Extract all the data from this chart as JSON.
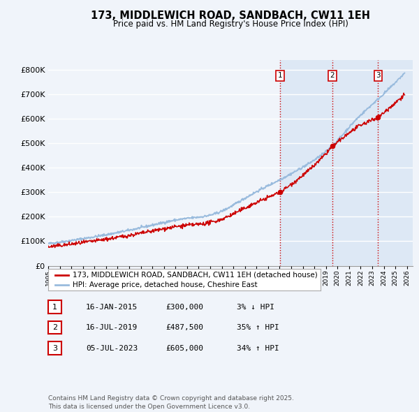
{
  "title": "173, MIDDLEWICH ROAD, SANDBACH, CW11 1EH",
  "subtitle": "Price paid vs. HM Land Registry's House Price Index (HPI)",
  "background_color": "#f0f4fa",
  "grid_color": "#ffffff",
  "ylim": [
    0,
    840000
  ],
  "yticks": [
    0,
    100000,
    200000,
    300000,
    400000,
    500000,
    600000,
    700000,
    800000
  ],
  "ytick_labels": [
    "£0",
    "£100K",
    "£200K",
    "£300K",
    "£400K",
    "£500K",
    "£600K",
    "£700K",
    "£800K"
  ],
  "xlim_start": 1995.0,
  "xlim_end": 2026.5,
  "sale_dates": [
    2015.04,
    2019.54,
    2023.51
  ],
  "sale_prices": [
    300000,
    487500,
    605000
  ],
  "sale_labels": [
    "1",
    "2",
    "3"
  ],
  "vline_color": "#cc0000",
  "sale_marker_color": "#cc0000",
  "hpi_line_color": "#99bbdd",
  "property_line_color": "#cc0000",
  "shade_color": "#dde8f5",
  "legend_items": [
    "173, MIDDLEWICH ROAD, SANDBACH, CW11 1EH (detached house)",
    "HPI: Average price, detached house, Cheshire East"
  ],
  "table_rows": [
    [
      "1",
      "16-JAN-2015",
      "£300,000",
      "3% ↓ HPI"
    ],
    [
      "2",
      "16-JUL-2019",
      "£487,500",
      "35% ↑ HPI"
    ],
    [
      "3",
      "05-JUL-2023",
      "£605,000",
      "34% ↑ HPI"
    ]
  ],
  "footer": "Contains HM Land Registry data © Crown copyright and database right 2025.\nThis data is licensed under the Open Government Licence v3.0."
}
